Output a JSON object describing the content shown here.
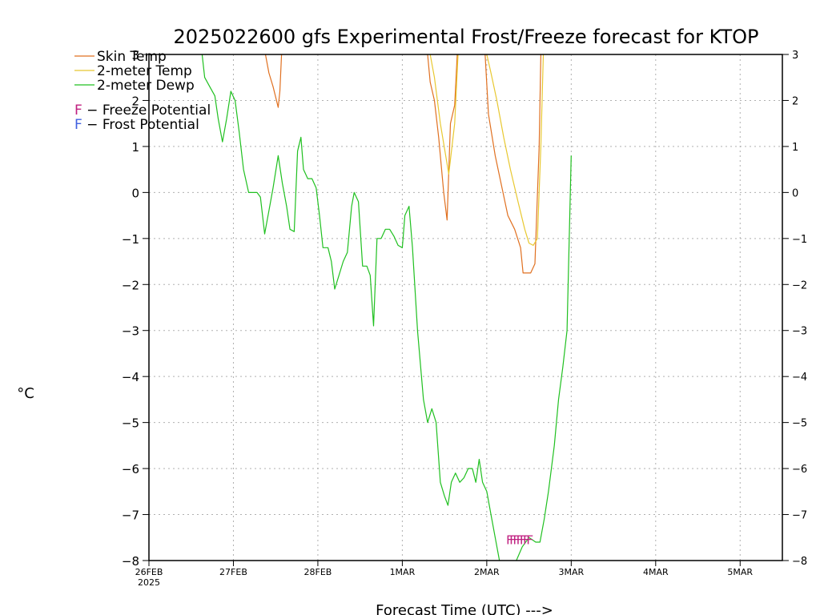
{
  "chart_data": {
    "type": "line",
    "title": "2025022600 gfs Experimental Frost/Freeze forecast for KTOP",
    "xlabel": "Forecast Time (UTC) --->",
    "ylabel": "°C",
    "ylim": [
      -8,
      3
    ],
    "xlim": [
      0,
      7.5
    ],
    "yticks": [
      3,
      2,
      1,
      0,
      -1,
      -2,
      -3,
      -4,
      -5,
      -6,
      -7,
      -8
    ],
    "ytick_labels_left": [
      "3",
      "2",
      "1",
      "0",
      "−1",
      "−2",
      "−3",
      "−4",
      "−5",
      "−6",
      "−7",
      "−8"
    ],
    "ytick_labels_right": [
      "3",
      "2",
      "1",
      "0",
      "−1",
      "−2",
      "−3",
      "−4",
      "−5",
      "−6",
      "−7",
      "−8"
    ],
    "xtick_positions": [
      0,
      1,
      2,
      3,
      4,
      5,
      6,
      7
    ],
    "xtick_labels": [
      "26FEB",
      "27FEB",
      "28FEB",
      "1MAR",
      "2MAR",
      "3MAR",
      "4MAR",
      "5MAR"
    ],
    "xtick_sublabel": "2025",
    "grid": true,
    "legend_position": "top-left",
    "series": [
      {
        "name": "Skin Temp",
        "color": "#e07020",
        "segments": [
          [
            [
              1.38,
              3.0
            ],
            [
              1.42,
              2.6
            ],
            [
              1.47,
              2.3
            ],
            [
              1.51,
              2.0
            ],
            [
              1.53,
              1.85
            ],
            [
              1.55,
              2.2
            ],
            [
              1.57,
              3.0
            ]
          ],
          [
            [
              3.3,
              3.0
            ],
            [
              3.33,
              2.4
            ],
            [
              3.38,
              2.0
            ],
            [
              3.43,
              1.2
            ],
            [
              3.49,
              0.0
            ],
            [
              3.53,
              -0.6
            ],
            [
              3.57,
              1.5
            ],
            [
              3.62,
              1.9
            ],
            [
              3.65,
              3.0
            ]
          ],
          [
            [
              3.98,
              3.0
            ],
            [
              4.02,
              1.7
            ],
            [
              4.1,
              0.8
            ],
            [
              4.18,
              0.1
            ],
            [
              4.25,
              -0.5
            ],
            [
              4.33,
              -0.8
            ],
            [
              4.4,
              -1.2
            ],
            [
              4.43,
              -1.75
            ],
            [
              4.52,
              -1.75
            ],
            [
              4.57,
              -1.55
            ],
            [
              4.62,
              1.0
            ],
            [
              4.64,
              3.0
            ]
          ]
        ]
      },
      {
        "name": "2-meter Temp",
        "color": "#e8c830",
        "segments": [
          [
            [
              3.33,
              3.0
            ],
            [
              3.38,
              2.5
            ],
            [
              3.45,
              1.5
            ],
            [
              3.55,
              0.4
            ],
            [
              3.62,
              1.5
            ],
            [
              3.66,
              3.0
            ]
          ],
          [
            [
              4.0,
              3.0
            ],
            [
              4.05,
              2.6
            ],
            [
              4.12,
              2.0
            ],
            [
              4.2,
              1.2
            ],
            [
              4.28,
              0.5
            ],
            [
              4.37,
              -0.2
            ],
            [
              4.45,
              -0.8
            ],
            [
              4.5,
              -1.1
            ],
            [
              4.55,
              -1.15
            ],
            [
              4.6,
              -1.0
            ],
            [
              4.64,
              1.0
            ],
            [
              4.67,
              3.0
            ]
          ]
        ]
      },
      {
        "name": "2-meter Dewp",
        "color": "#20c020",
        "segments": [
          [
            [
              0.63,
              3.0
            ],
            [
              0.66,
              2.5
            ],
            [
              0.72,
              2.3
            ],
            [
              0.78,
              2.1
            ],
            [
              0.82,
              1.6
            ],
            [
              0.87,
              1.1
            ],
            [
              0.92,
              1.6
            ],
            [
              0.97,
              2.2
            ],
            [
              1.02,
              2.0
            ],
            [
              1.07,
              1.3
            ],
            [
              1.12,
              0.5
            ],
            [
              1.18,
              0.0
            ],
            [
              1.28,
              0.0
            ],
            [
              1.32,
              -0.1
            ],
            [
              1.37,
              -0.9
            ],
            [
              1.42,
              -0.4
            ],
            [
              1.47,
              0.1
            ],
            [
              1.53,
              0.8
            ],
            [
              1.58,
              0.2
            ],
            [
              1.63,
              -0.3
            ],
            [
              1.67,
              -0.8
            ],
            [
              1.72,
              -0.85
            ],
            [
              1.76,
              0.9
            ],
            [
              1.8,
              1.2
            ],
            [
              1.83,
              0.5
            ],
            [
              1.88,
              0.3
            ],
            [
              1.93,
              0.3
            ],
            [
              1.98,
              0.1
            ],
            [
              2.02,
              -0.5
            ],
            [
              2.06,
              -1.2
            ],
            [
              2.12,
              -1.2
            ],
            [
              2.16,
              -1.5
            ],
            [
              2.2,
              -2.1
            ],
            [
              2.25,
              -1.8
            ],
            [
              2.3,
              -1.5
            ],
            [
              2.35,
              -1.3
            ],
            [
              2.4,
              -0.3
            ],
            [
              2.43,
              0.0
            ],
            [
              2.48,
              -0.2
            ],
            [
              2.53,
              -1.6
            ],
            [
              2.58,
              -1.6
            ],
            [
              2.62,
              -1.8
            ],
            [
              2.66,
              -2.9
            ],
            [
              2.7,
              -1.0
            ],
            [
              2.75,
              -1.0
            ],
            [
              2.8,
              -0.8
            ],
            [
              2.85,
              -0.8
            ],
            [
              2.9,
              -0.95
            ],
            [
              2.95,
              -1.15
            ],
            [
              3.0,
              -1.2
            ],
            [
              3.03,
              -0.5
            ],
            [
              3.08,
              -0.3
            ],
            [
              3.12,
              -1.2
            ],
            [
              3.18,
              -3.0
            ],
            [
              3.25,
              -4.5
            ],
            [
              3.3,
              -5.0
            ],
            [
              3.35,
              -4.7
            ],
            [
              3.4,
              -5.0
            ],
            [
              3.45,
              -6.3
            ],
            [
              3.5,
              -6.6
            ],
            [
              3.54,
              -6.8
            ],
            [
              3.58,
              -6.3
            ],
            [
              3.63,
              -6.1
            ],
            [
              3.68,
              -6.3
            ],
            [
              3.73,
              -6.2
            ],
            [
              3.78,
              -6.0
            ],
            [
              3.83,
              -6.0
            ],
            [
              3.87,
              -6.3
            ],
            [
              3.91,
              -5.8
            ],
            [
              3.95,
              -6.3
            ],
            [
              4.0,
              -6.5
            ],
            [
              4.05,
              -7.0
            ],
            [
              4.1,
              -7.5
            ],
            [
              4.15,
              -8.0
            ]
          ],
          [
            [
              4.35,
              -8.0
            ],
            [
              4.42,
              -7.7
            ],
            [
              4.5,
              -7.5
            ],
            [
              4.58,
              -7.6
            ],
            [
              4.63,
              -7.6
            ],
            [
              4.68,
              -7.1
            ],
            [
              4.73,
              -6.5
            ],
            [
              4.8,
              -5.5
            ],
            [
              4.85,
              -4.5
            ],
            [
              4.9,
              -3.8
            ],
            [
              4.95,
              -3.0
            ],
            [
              5.0,
              0.8
            ]
          ]
        ]
      }
    ],
    "freeze_marks": {
      "label": "F",
      "color": "#c02080",
      "x": [
        4.27,
        4.31,
        4.35,
        4.39,
        4.43,
        4.47,
        4.51
      ],
      "y": -7.5
    }
  },
  "legend": {
    "items": [
      {
        "label": "Skin Temp",
        "color": "#e07020"
      },
      {
        "label": "2-meter Temp",
        "color": "#e8c830"
      },
      {
        "label": "2-meter Dewp",
        "color": "#20c020"
      }
    ],
    "potentials": [
      {
        "letter": "F",
        "text": " − Freeze Potential",
        "color": "#c02080"
      },
      {
        "letter": "F",
        "text": " − Frost Potential",
        "color": "#4060e0"
      }
    ]
  }
}
